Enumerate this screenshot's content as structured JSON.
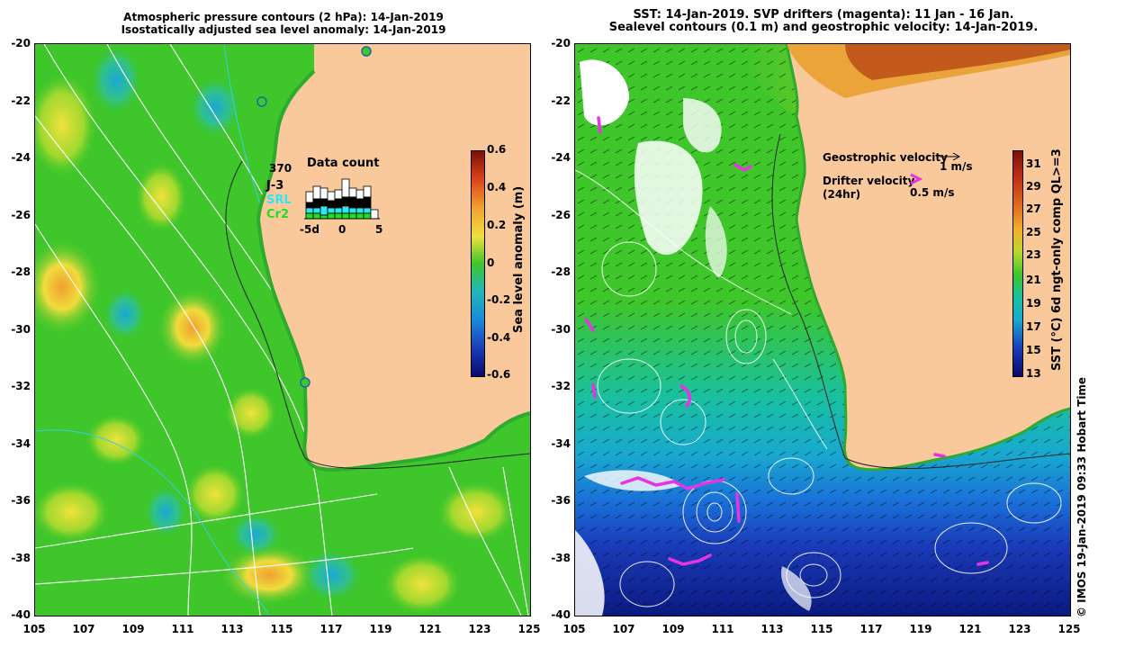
{
  "left_panel": {
    "title_line1": "Atmospheric pressure contours (2 hPa): 14-Jan-2019",
    "title_line2": "Isostatically adjusted sea level anomaly: 14-Jan-2019",
    "colorbar_label": "Sea level anomaly (m)",
    "colorbar_ticks": [
      "0.6",
      "0.4",
      "0.2",
      "0",
      "-0.2",
      "-0.4",
      "-0.6"
    ],
    "colors": {
      "land": "#f9c89b",
      "ocean_base": "#3ec62a",
      "high": "#f0e040",
      "low": "#22b7b8"
    },
    "inset": {
      "title": "Data count",
      "max_label": "370",
      "series": [
        {
          "name": "J-3",
          "color": "#000000"
        },
        {
          "name": "SRL",
          "color": "#2ee6f0"
        },
        {
          "name": "Cr2",
          "color": "#22dd22"
        }
      ],
      "x_ticks": [
        "-5d",
        "0",
        "5"
      ]
    }
  },
  "right_panel": {
    "title_line1": "SST: 14-Jan-2019. SVP drifters (magenta): 11 Jan - 16 Jan.",
    "title_line2": "Sealevel contours (0.1 m) and geostrophic velocity: 14-Jan-2019.",
    "colorbar_label": "SST (°C) 6d ngt-only comp QL>=3",
    "colorbar_ticks": [
      "31",
      "29",
      "27",
      "25",
      "23",
      "21",
      "19",
      "17",
      "15",
      "13"
    ],
    "legend": {
      "geostrophic_label": "Geostrophic velocity",
      "geostrophic_scale": "1 m/s",
      "drifter_label": "Drifter velocity",
      "drifter_sub": "(24hr)",
      "drifter_scale": "0.5 m/s"
    },
    "drifter_color": "#e633e6"
  },
  "axes": {
    "y_ticks": [
      "-20",
      "-22",
      "-24",
      "-26",
      "-28",
      "-30",
      "-32",
      "-34",
      "-36",
      "-38",
      "-40"
    ],
    "x_ticks": [
      "105",
      "107",
      "109",
      "111",
      "113",
      "115",
      "117",
      "119",
      "121",
      "123",
      "125"
    ]
  },
  "credit": "© IMOS 19-Jan-2019 09:33 Hobart Time"
}
